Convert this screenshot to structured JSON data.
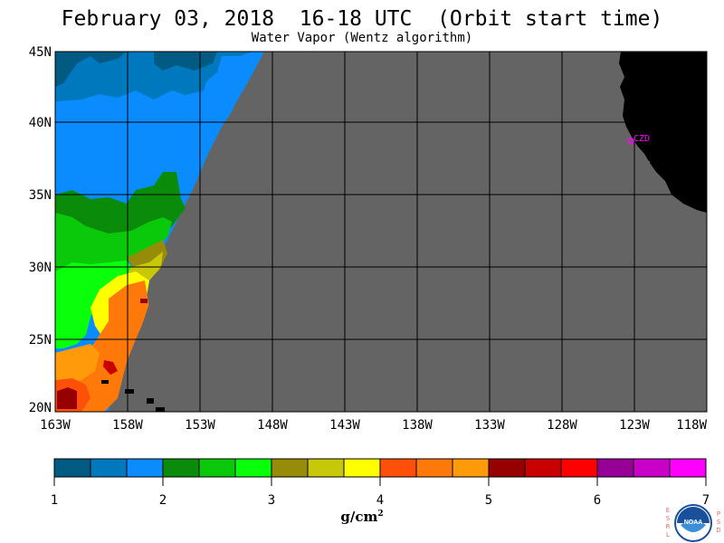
{
  "title": "February 03, 2018  16-18 UTC  (Orbit start time)",
  "subtitle": "Water Vapor (Wentz algorithm)",
  "map": {
    "lat_labels": [
      "45N",
      "40N",
      "35N",
      "30N",
      "25N",
      "20N"
    ],
    "lon_labels": [
      "163W",
      "158W",
      "153W",
      "148W",
      "143W",
      "138W",
      "133W",
      "128W",
      "123W",
      "118W"
    ],
    "station_label": "CZD",
    "colors": {
      "no_data": "#646464",
      "land": "#000000",
      "station": "#ff00ff"
    }
  },
  "colorbar": {
    "colors": [
      "#005a82",
      "#0078be",
      "#0a8cff",
      "#0a8c0a",
      "#0ac80a",
      "#0aff0a",
      "#968c0a",
      "#c8c80a",
      "#ffff00",
      "#ff500a",
      "#ff780a",
      "#ff9b0a",
      "#960000",
      "#c80000",
      "#ff0000",
      "#960096",
      "#c800c8",
      "#ff00ff"
    ],
    "tick_labels": [
      "1",
      "2",
      "3",
      "4",
      "5",
      "6",
      "7"
    ],
    "units_base": "g/cm",
    "units_exp": "2"
  },
  "logo": {
    "left_letters": [
      "E",
      "S",
      "R",
      "L"
    ],
    "right_letters": [
      "P",
      "S",
      "D"
    ],
    "text": "NOAA"
  }
}
